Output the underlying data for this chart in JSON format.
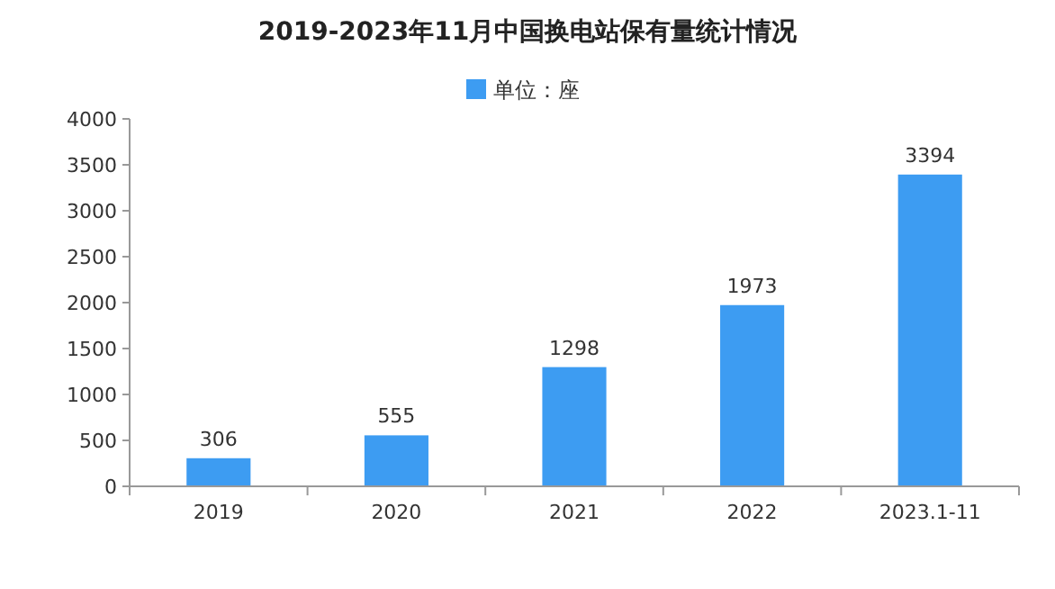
{
  "chart_data": {
    "type": "bar",
    "title": "2019-2023年11月中国换电站保有量统计情况",
    "categories": [
      "2019",
      "2020",
      "2021",
      "2022",
      "2023.1-11"
    ],
    "series": [
      {
        "name": "单位：座",
        "color": "#3d9cf2",
        "values": [
          306,
          555,
          1298,
          1973,
          3394
        ]
      }
    ],
    "ylim": [
      0,
      4000
    ],
    "yticks": [
      0,
      500,
      1000,
      1500,
      2000,
      2500,
      3000,
      3500,
      4000
    ],
    "grid": false,
    "legend": "top",
    "data_labels": true
  }
}
